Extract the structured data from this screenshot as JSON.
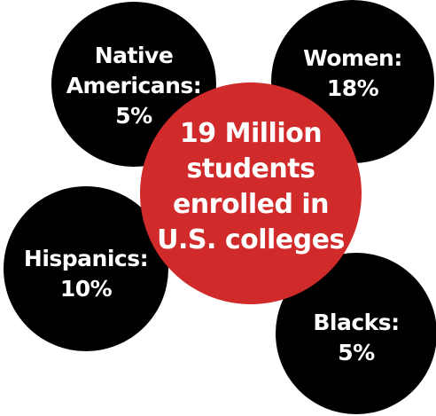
{
  "center": {
    "lines": [
      "19 Million",
      "students",
      "enrolled in",
      "U.S. colleges"
    ],
    "color": "#d12a2a"
  },
  "native_americans": {
    "lines": [
      "Native",
      "Americans:",
      "5%"
    ]
  },
  "women": {
    "lines": [
      "Women:",
      "18%"
    ]
  },
  "hispanics": {
    "lines": [
      "Hispanics:",
      "10%"
    ]
  },
  "blacks": {
    "lines": [
      "Blacks:",
      "5%"
    ]
  }
}
